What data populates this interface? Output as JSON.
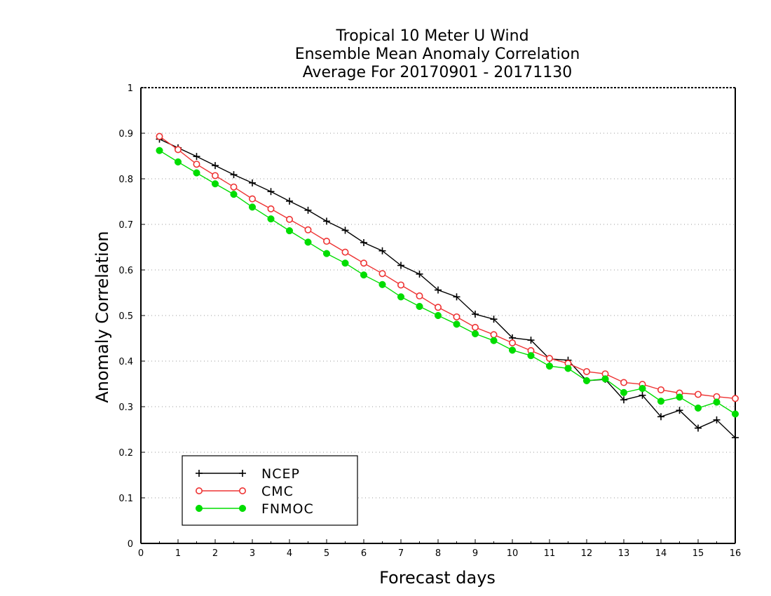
{
  "chart_data": {
    "type": "line",
    "title": [
      "Tropical 10 Meter U Wind",
      "Ensemble Mean Anomaly Correlation",
      "Average For 20170901 - 20171130"
    ],
    "xlabel": "Forecast days",
    "ylabel": "Anomaly Correlation",
    "xlim": [
      0,
      16
    ],
    "ylim": [
      0,
      1
    ],
    "xticks": [
      0,
      1,
      2,
      3,
      4,
      5,
      6,
      7,
      8,
      9,
      10,
      11,
      12,
      13,
      14,
      15,
      16
    ],
    "yticks": [
      0,
      0.1,
      0.2,
      0.3,
      0.4,
      0.5,
      0.6,
      0.7,
      0.8,
      0.9,
      1
    ],
    "ytick_labels": [
      "0",
      "0.1",
      "0.2",
      "0.3",
      "0.4",
      "0.5",
      "0.6",
      "0.7",
      "0.8",
      "0.9",
      "1"
    ],
    "grid": "horizontal dotted",
    "legend_position": "bottom-left",
    "x": [
      0.5,
      1,
      1.5,
      2,
      2.5,
      3,
      3.5,
      4,
      4.5,
      5,
      5.5,
      6,
      6.5,
      7,
      7.5,
      8,
      8.5,
      9,
      9.5,
      10,
      10.5,
      11,
      11.5,
      12,
      12.5,
      13,
      13.5,
      14,
      14.5,
      15,
      15.5,
      16
    ],
    "series": [
      {
        "name": "NCEP",
        "color": "#000000",
        "marker": "plus",
        "values": [
          0.887,
          0.868,
          0.849,
          0.829,
          0.809,
          0.791,
          0.772,
          0.751,
          0.731,
          0.707,
          0.687,
          0.66,
          0.642,
          0.61,
          0.591,
          0.556,
          0.541,
          0.503,
          0.492,
          0.451,
          0.446,
          0.405,
          0.402,
          0.357,
          0.36,
          0.315,
          0.325,
          0.278,
          0.292,
          0.253,
          0.271,
          0.232
        ]
      },
      {
        "name": "CMC",
        "color": "#ee3333",
        "marker": "open-circle",
        "values": [
          0.893,
          0.864,
          0.832,
          0.807,
          0.782,
          0.756,
          0.734,
          0.711,
          0.688,
          0.663,
          0.639,
          0.615,
          0.592,
          0.567,
          0.543,
          0.518,
          0.497,
          0.474,
          0.458,
          0.44,
          0.423,
          0.406,
          0.395,
          0.377,
          0.372,
          0.353,
          0.349,
          0.337,
          0.33,
          0.327,
          0.322,
          0.318
        ]
      },
      {
        "name": "FNMOC",
        "color": "#00dd00",
        "marker": "filled-circle",
        "values": [
          0.862,
          0.837,
          0.813,
          0.789,
          0.766,
          0.738,
          0.712,
          0.686,
          0.661,
          0.636,
          0.615,
          0.589,
          0.568,
          0.541,
          0.52,
          0.5,
          0.481,
          0.46,
          0.445,
          0.424,
          0.412,
          0.389,
          0.384,
          0.357,
          0.361,
          0.331,
          0.34,
          0.312,
          0.321,
          0.297,
          0.31,
          0.284
        ]
      }
    ]
  }
}
